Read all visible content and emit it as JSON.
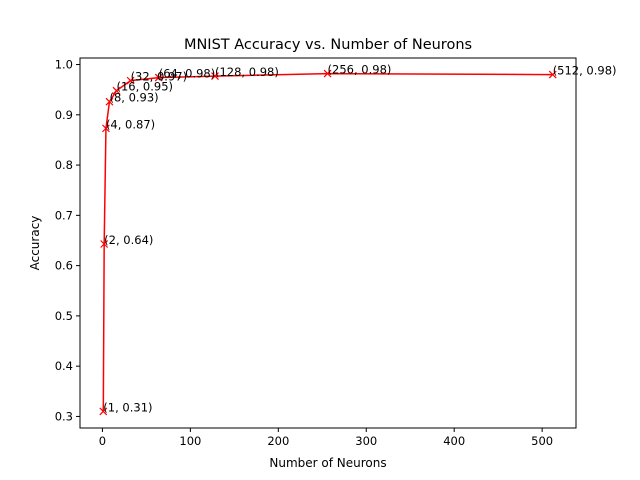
{
  "chart_data": {
    "type": "line",
    "title": "MNIST Accuracy vs. Number of Neurons",
    "xlabel": "Number of Neurons",
    "ylabel": "Accuracy",
    "xlim": [
      -25.5,
      538.5
    ],
    "ylim": [
      0.277,
      1.013
    ],
    "xticks": [
      0,
      100,
      200,
      300,
      400,
      500
    ],
    "xtick_labels": [
      "0",
      "100",
      "200",
      "300",
      "400",
      "500"
    ],
    "yticks": [
      0.3,
      0.4,
      0.5,
      0.6,
      0.7,
      0.8,
      0.9,
      1.0
    ],
    "ytick_labels": [
      "0.3",
      "0.4",
      "0.5",
      "0.6",
      "0.7",
      "0.8",
      "0.9",
      "1.0"
    ],
    "grid": false,
    "line_color": "#ff0000",
    "marker": "x",
    "series": [
      {
        "x": [
          1,
          2,
          4,
          8,
          16,
          32,
          64,
          128,
          256,
          512
        ],
        "y": [
          0.31,
          0.643,
          0.873,
          0.926,
          0.948,
          0.968,
          0.974,
          0.977,
          0.982,
          0.98
        ],
        "point_labels": [
          "(1, 0.31)",
          "(2, 0.64)",
          "(4, 0.87)",
          "(8, 0.93)",
          "(16, 0.95)",
          "(32, 0.97)",
          "(64, 0.98)",
          "(128, 0.98)",
          "(256, 0.98)",
          "(512, 0.98)"
        ]
      }
    ]
  }
}
